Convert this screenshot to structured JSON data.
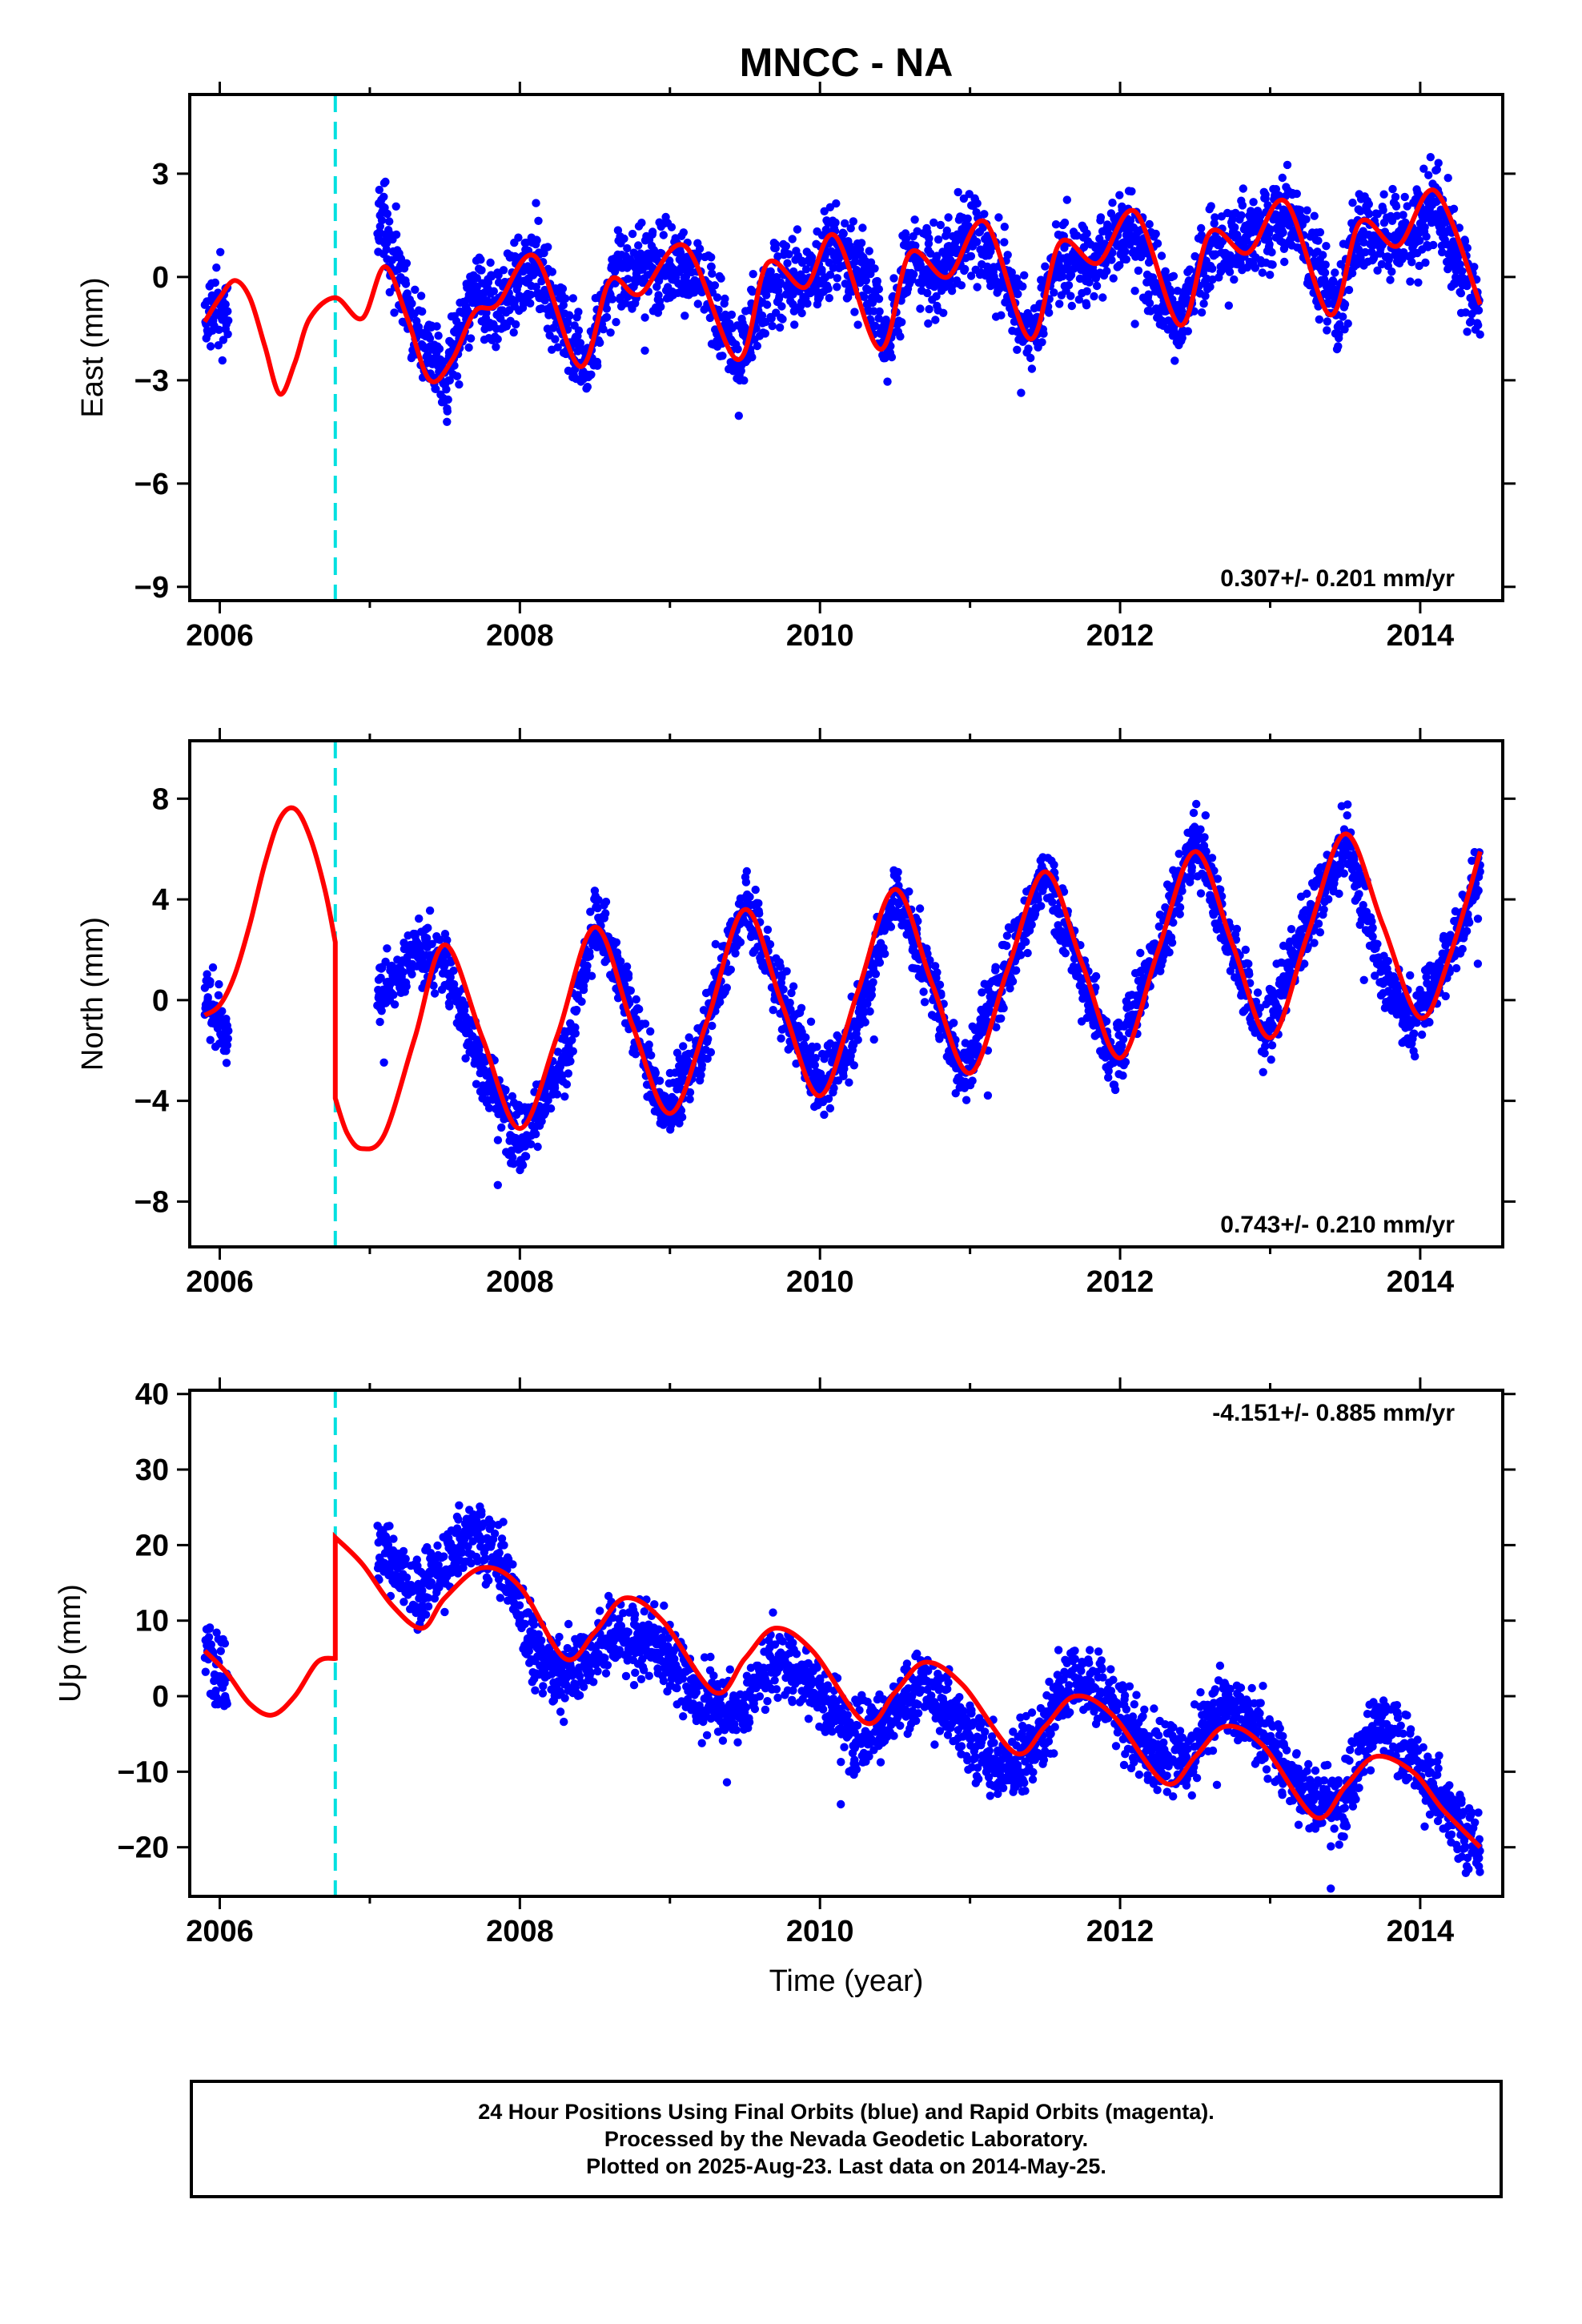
{
  "title": "MNCC - NA",
  "colors": {
    "data": "#0000ff",
    "model": "#ff0000",
    "offset": "#00e0e0",
    "axis": "#000000"
  },
  "xlabel": "Time (year)",
  "footer": {
    "line1": "24 Hour Positions Using Final Orbits (blue) and Rapid Orbits (magenta).",
    "line2": "Processed by the Nevada Geodetic Laboratory.",
    "line3": "Plotted on 2025-Aug-23. Last data on 2014-May-25."
  },
  "chart_data": [
    {
      "type": "scatter",
      "ylabel": "East (mm)",
      "rate": "0.307+/- 0.201 mm/yr",
      "xlim": [
        2005.8,
        2014.55
      ],
      "ylim": [
        -9.4,
        5.3
      ],
      "xticks": [
        2006,
        2008,
        2010,
        2012,
        2014
      ],
      "xtick_labels": [
        "2006",
        "2008",
        "2010",
        "2012",
        "2014"
      ],
      "yticks": [
        3,
        0,
        -3,
        -6,
        -9
      ],
      "ytick_labels": [
        "3",
        "0",
        "−3",
        "−6",
        "−9"
      ],
      "offset_epoch": 2006.77,
      "data_span": [
        2005.9,
        2014.4
      ],
      "series": [
        {
          "kind": "observations",
          "x": [
            2005.92,
            2006.05,
            2007.1,
            2007.3,
            2007.5,
            2007.7,
            2007.9,
            2008.1,
            2008.3,
            2008.45,
            2008.6,
            2008.8,
            2009.0,
            2009.2,
            2009.45,
            2009.7,
            2009.9,
            2010.1,
            2010.35,
            2010.45,
            2010.6,
            2010.8,
            2011.0,
            2011.15,
            2011.4,
            2011.6,
            2011.8,
            2012.0,
            2012.15,
            2012.4,
            2012.6,
            2012.8,
            2013.0,
            2013.15,
            2013.45,
            2013.6,
            2013.8,
            2013.95,
            2014.1,
            2014.25,
            2014.38
          ],
          "y": [
            -1.2,
            -0.8,
            1.5,
            -1.5,
            -3.0,
            -0.5,
            -0.8,
            0.5,
            -1.5,
            -2.6,
            0.0,
            0.2,
            0.6,
            0.0,
            -2.3,
            0.0,
            -0.2,
            1.0,
            -0.5,
            -2.0,
            0.6,
            0.0,
            1.3,
            0.7,
            -1.7,
            0.6,
            0.3,
            1.5,
            0.8,
            -1.3,
            0.8,
            1.1,
            1.5,
            1.8,
            -1.0,
            1.4,
            1.1,
            1.2,
            2.2,
            0.4,
            -0.8
          ]
        },
        {
          "kind": "model",
          "x": [
            2005.9,
            2006.0,
            2006.1,
            2006.2,
            2006.3,
            2006.4,
            2006.5,
            2006.6,
            2006.77,
            2006.95,
            2007.1,
            2007.25,
            2007.4,
            2007.55,
            2007.7,
            2007.85,
            2008.1,
            2008.4,
            2008.6,
            2008.8,
            2009.1,
            2009.45,
            2009.65,
            2009.9,
            2010.1,
            2010.4,
            2010.6,
            2010.85,
            2011.1,
            2011.4,
            2011.6,
            2011.85,
            2012.1,
            2012.4,
            2012.6,
            2012.85,
            2013.1,
            2013.4,
            2013.6,
            2013.85,
            2014.1,
            2014.4
          ],
          "y": [
            -1.3,
            -0.6,
            -0.1,
            -0.6,
            -2.0,
            -3.4,
            -2.5,
            -1.2,
            -0.6,
            -1.2,
            0.3,
            -1.2,
            -3.0,
            -2.4,
            -1.0,
            -0.8,
            0.6,
            -2.6,
            -0.1,
            -0.5,
            0.9,
            -2.4,
            0.4,
            -0.3,
            1.2,
            -2.1,
            0.7,
            0.0,
            1.6,
            -1.8,
            1.0,
            0.4,
            1.9,
            -1.4,
            1.3,
            0.7,
            2.2,
            -1.1,
            1.6,
            0.9,
            2.5,
            -0.8
          ]
        }
      ]
    },
    {
      "type": "scatter",
      "ylabel": "North (mm)",
      "rate": "0.743+/- 0.210 mm/yr",
      "xlim": [
        2005.8,
        2014.55
      ],
      "ylim": [
        -9.8,
        10.3
      ],
      "xticks": [
        2006,
        2008,
        2010,
        2012,
        2014
      ],
      "xtick_labels": [
        "2006",
        "2008",
        "2010",
        "2012",
        "2014"
      ],
      "yticks": [
        8,
        4,
        0,
        -4,
        -8
      ],
      "ytick_labels": [
        "8",
        "4",
        "0",
        "−4",
        "−8"
      ],
      "offset_epoch": 2006.77,
      "data_span": [
        2005.9,
        2014.4
      ],
      "series": [
        {
          "kind": "observations",
          "x": [
            2005.92,
            2006.02,
            2007.1,
            2007.3,
            2007.5,
            2007.8,
            2008.0,
            2008.3,
            2008.5,
            2008.7,
            2008.95,
            2009.2,
            2009.5,
            2009.75,
            2010.0,
            2010.25,
            2010.5,
            2010.75,
            2010.95,
            2011.25,
            2011.5,
            2011.75,
            2011.95,
            2012.25,
            2012.5,
            2012.75,
            2012.95,
            2013.25,
            2013.5,
            2013.75,
            2013.95,
            2014.2,
            2014.4
          ],
          "y": [
            0.5,
            -1.5,
            0.5,
            2.0,
            1.5,
            -3.5,
            -5.5,
            -2.5,
            3.5,
            0.5,
            -4.5,
            -2.0,
            4.0,
            0.0,
            -3.5,
            -1.0,
            4.5,
            0.5,
            -3.0,
            1.5,
            5.0,
            1.0,
            -2.5,
            2.0,
            6.5,
            2.0,
            -1.5,
            3.0,
            6.5,
            1.0,
            -1.0,
            2.0,
            5.0
          ]
        },
        {
          "kind": "model",
          "x": [
            2005.9,
            2006.0,
            2006.1,
            2006.2,
            2006.3,
            2006.4,
            2006.5,
            2006.6,
            2006.7,
            2006.77,
            2006.77,
            2006.85,
            2006.95,
            2007.1,
            2007.3,
            2007.5,
            2007.75,
            2008.0,
            2008.25,
            2008.5,
            2008.75,
            2009.0,
            2009.25,
            2009.5,
            2009.75,
            2010.0,
            2010.25,
            2010.5,
            2010.75,
            2011.0,
            2011.25,
            2011.5,
            2011.75,
            2012.0,
            2012.25,
            2012.5,
            2012.75,
            2013.0,
            2013.25,
            2013.5,
            2013.75,
            2014.0,
            2014.2,
            2014.4
          ],
          "y": [
            -0.6,
            -0.2,
            1.0,
            3.0,
            5.4,
            7.2,
            7.6,
            6.5,
            4.4,
            2.3,
            -3.9,
            -5.3,
            -5.9,
            -5.3,
            -1.5,
            2.2,
            -1.5,
            -5.1,
            -1.4,
            2.9,
            -1.0,
            -4.5,
            -0.8,
            3.6,
            -0.2,
            -3.8,
            0.3,
            4.4,
            0.6,
            -2.9,
            1.2,
            5.1,
            1.4,
            -2.3,
            1.9,
            5.9,
            2.2,
            -1.5,
            2.6,
            6.6,
            3.0,
            -0.7,
            1.8,
            5.9
          ]
        }
      ]
    },
    {
      "type": "scatter",
      "ylabel": "Up (mm)",
      "rate": "-4.151+/- 0.885 mm/yr",
      "xlim": [
        2005.8,
        2014.55
      ],
      "ylim": [
        -26.5,
        40.5
      ],
      "xticks": [
        2006,
        2008,
        2010,
        2012,
        2014
      ],
      "xtick_labels": [
        "2006",
        "2008",
        "2010",
        "2012",
        "2014"
      ],
      "yticks": [
        40,
        30,
        20,
        10,
        0,
        -10,
        -20
      ],
      "ytick_labels": [
        "40",
        "30",
        "20",
        "10",
        "0",
        "−10",
        "−20"
      ],
      "offset_epoch": 2006.77,
      "data_span": [
        2005.9,
        2014.4
      ],
      "series": [
        {
          "kind": "observations",
          "x": [
            2005.92,
            2006.02,
            2007.1,
            2007.3,
            2007.5,
            2007.7,
            2007.9,
            2008.1,
            2008.3,
            2008.6,
            2008.9,
            2009.2,
            2009.45,
            2009.7,
            2009.95,
            2010.2,
            2010.45,
            2010.7,
            2010.95,
            2011.2,
            2011.45,
            2011.7,
            2011.95,
            2012.2,
            2012.45,
            2012.7,
            2012.95,
            2013.2,
            2013.45,
            2013.7,
            2013.95,
            2014.15,
            2014.38
          ],
          "y": [
            6.0,
            3.0,
            20.0,
            13.0,
            18.0,
            22.0,
            17.0,
            6.0,
            2.0,
            8.0,
            7.0,
            0.0,
            -2.0,
            5.0,
            2.0,
            -5.0,
            -3.0,
            2.0,
            -4.0,
            -10.0,
            -6.0,
            3.0,
            -1.0,
            -8.0,
            -8.0,
            0.0,
            -5.0,
            -12.0,
            -15.0,
            -3.0,
            -8.0,
            -14.0,
            -20.0
          ]
        },
        {
          "kind": "model",
          "x": [
            2005.9,
            2006.05,
            2006.2,
            2006.35,
            2006.5,
            2006.65,
            2006.77,
            2006.77,
            2006.95,
            2007.15,
            2007.35,
            2007.5,
            2007.75,
            2008.0,
            2008.3,
            2008.5,
            2008.7,
            2008.95,
            2009.3,
            2009.5,
            2009.7,
            2009.95,
            2010.3,
            2010.5,
            2010.7,
            2010.95,
            2011.3,
            2011.5,
            2011.7,
            2011.95,
            2012.3,
            2012.5,
            2012.7,
            2012.95,
            2013.3,
            2013.5,
            2013.7,
            2013.95,
            2014.15,
            2014.4
          ],
          "y": [
            6.0,
            3.0,
            -1.0,
            -2.5,
            0.0,
            4.5,
            5.0,
            21.0,
            17.5,
            12.0,
            9.0,
            13.0,
            17.0,
            14.5,
            5.0,
            8.5,
            13.0,
            10.0,
            0.5,
            5.0,
            9.0,
            6.0,
            -3.5,
            0.5,
            4.5,
            1.5,
            -7.5,
            -4.0,
            0.0,
            -2.5,
            -11.5,
            -8.0,
            -4.0,
            -6.5,
            -16.0,
            -12.0,
            -8.0,
            -10.0,
            -15.0,
            -20.0
          ]
        }
      ]
    }
  ]
}
